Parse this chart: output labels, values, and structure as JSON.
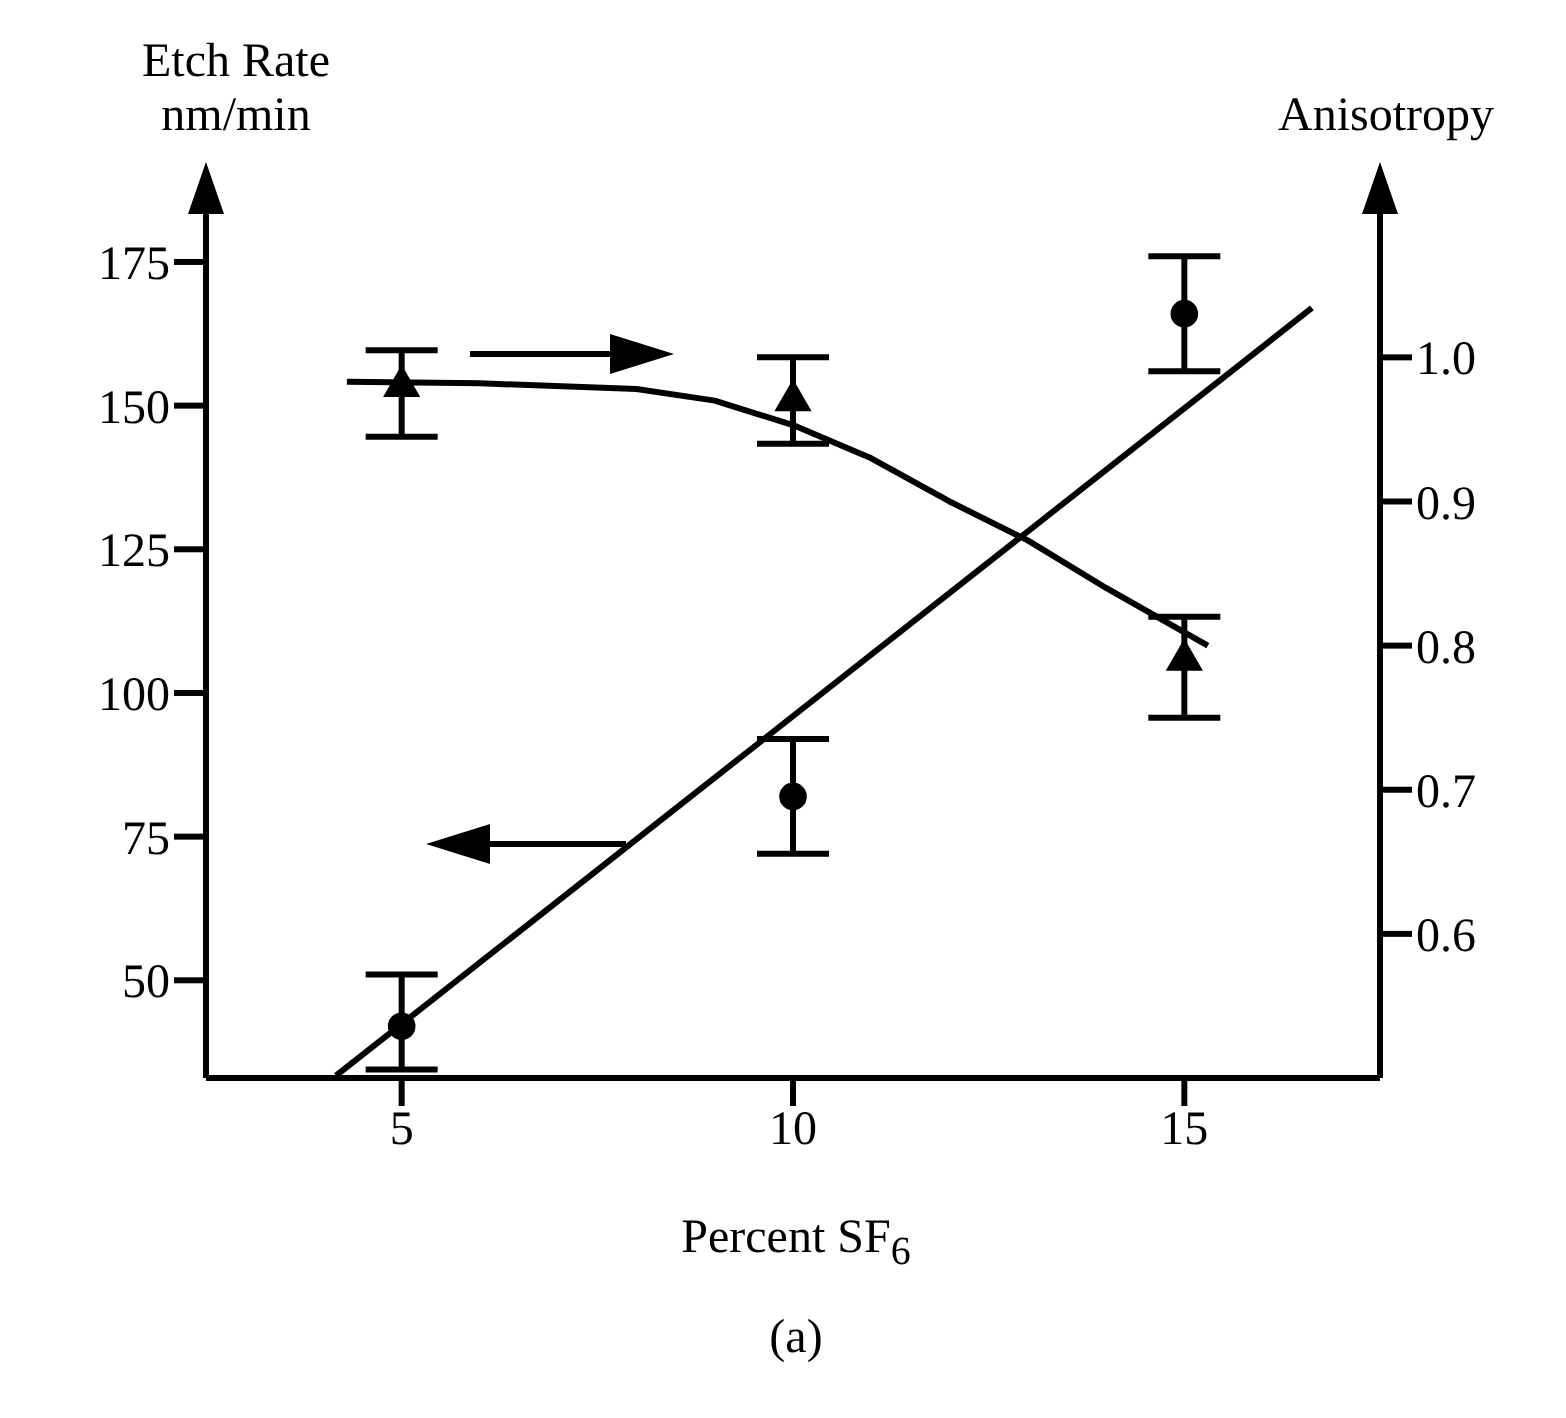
{
  "chart_data": {
    "type": "scatter",
    "xlabel": "Percent SF$_{6}$",
    "ylabel": "Etch Rate\nnm/min",
    "y2label": "Anisotropy",
    "xlim": [
      2.5,
      17.5
    ],
    "xticks": [
      5,
      10,
      15
    ],
    "ylim": [
      33,
      191
    ],
    "yticks": [
      50,
      75,
      100,
      125,
      150,
      175
    ],
    "y2lim": [
      0.5,
      1.13
    ],
    "y2ticks": [
      {
        "value": 0.6,
        "label": "0.6"
      },
      {
        "value": 0.7,
        "label": "0.7"
      },
      {
        "value": 0.8,
        "label": "0.8"
      },
      {
        "value": 0.9,
        "label": "0.9"
      },
      {
        "value": 1.0,
        "label": "1.0"
      }
    ],
    "grid": false,
    "legend": false,
    "line_style": "solid",
    "annotations": [
      "(a)"
    ],
    "series": [
      {
        "marker": "circle",
        "color": "#000000",
        "x": [
          5,
          10,
          15
        ],
        "values": [
          42,
          82,
          166
        ],
        "errors": [
          [
            34.5,
            51
          ],
          [
            72,
            92
          ],
          [
            156,
            176
          ]
        ]
      },
      {
        "marker": "triangle",
        "axis": "y2",
        "color": "#000000",
        "x": [
          5,
          10,
          15
        ],
        "values": [
          0.98,
          0.97,
          0.79
        ],
        "errors": [
          [
            0.945,
            1.005
          ],
          [
            0.94,
            1.0
          ],
          [
            0.75,
            0.82
          ]
        ]
      },
      {
        "type": "line",
        "marker": "none",
        "color": "#000000",
        "x": [
          4.16,
          16.63
        ],
        "values": [
          33.4,
          167
        ]
      },
      {
        "type": "line",
        "marker": "none",
        "axis": "y2",
        "color": "#000000",
        "x": [
          4.3,
          6,
          8,
          9,
          10,
          11,
          12,
          13,
          14,
          15.3
        ],
        "values": [
          0.983,
          0.982,
          0.978,
          0.97,
          0.953,
          0.93,
          0.9,
          0.873,
          0.84,
          0.8
        ]
      }
    ]
  }
}
